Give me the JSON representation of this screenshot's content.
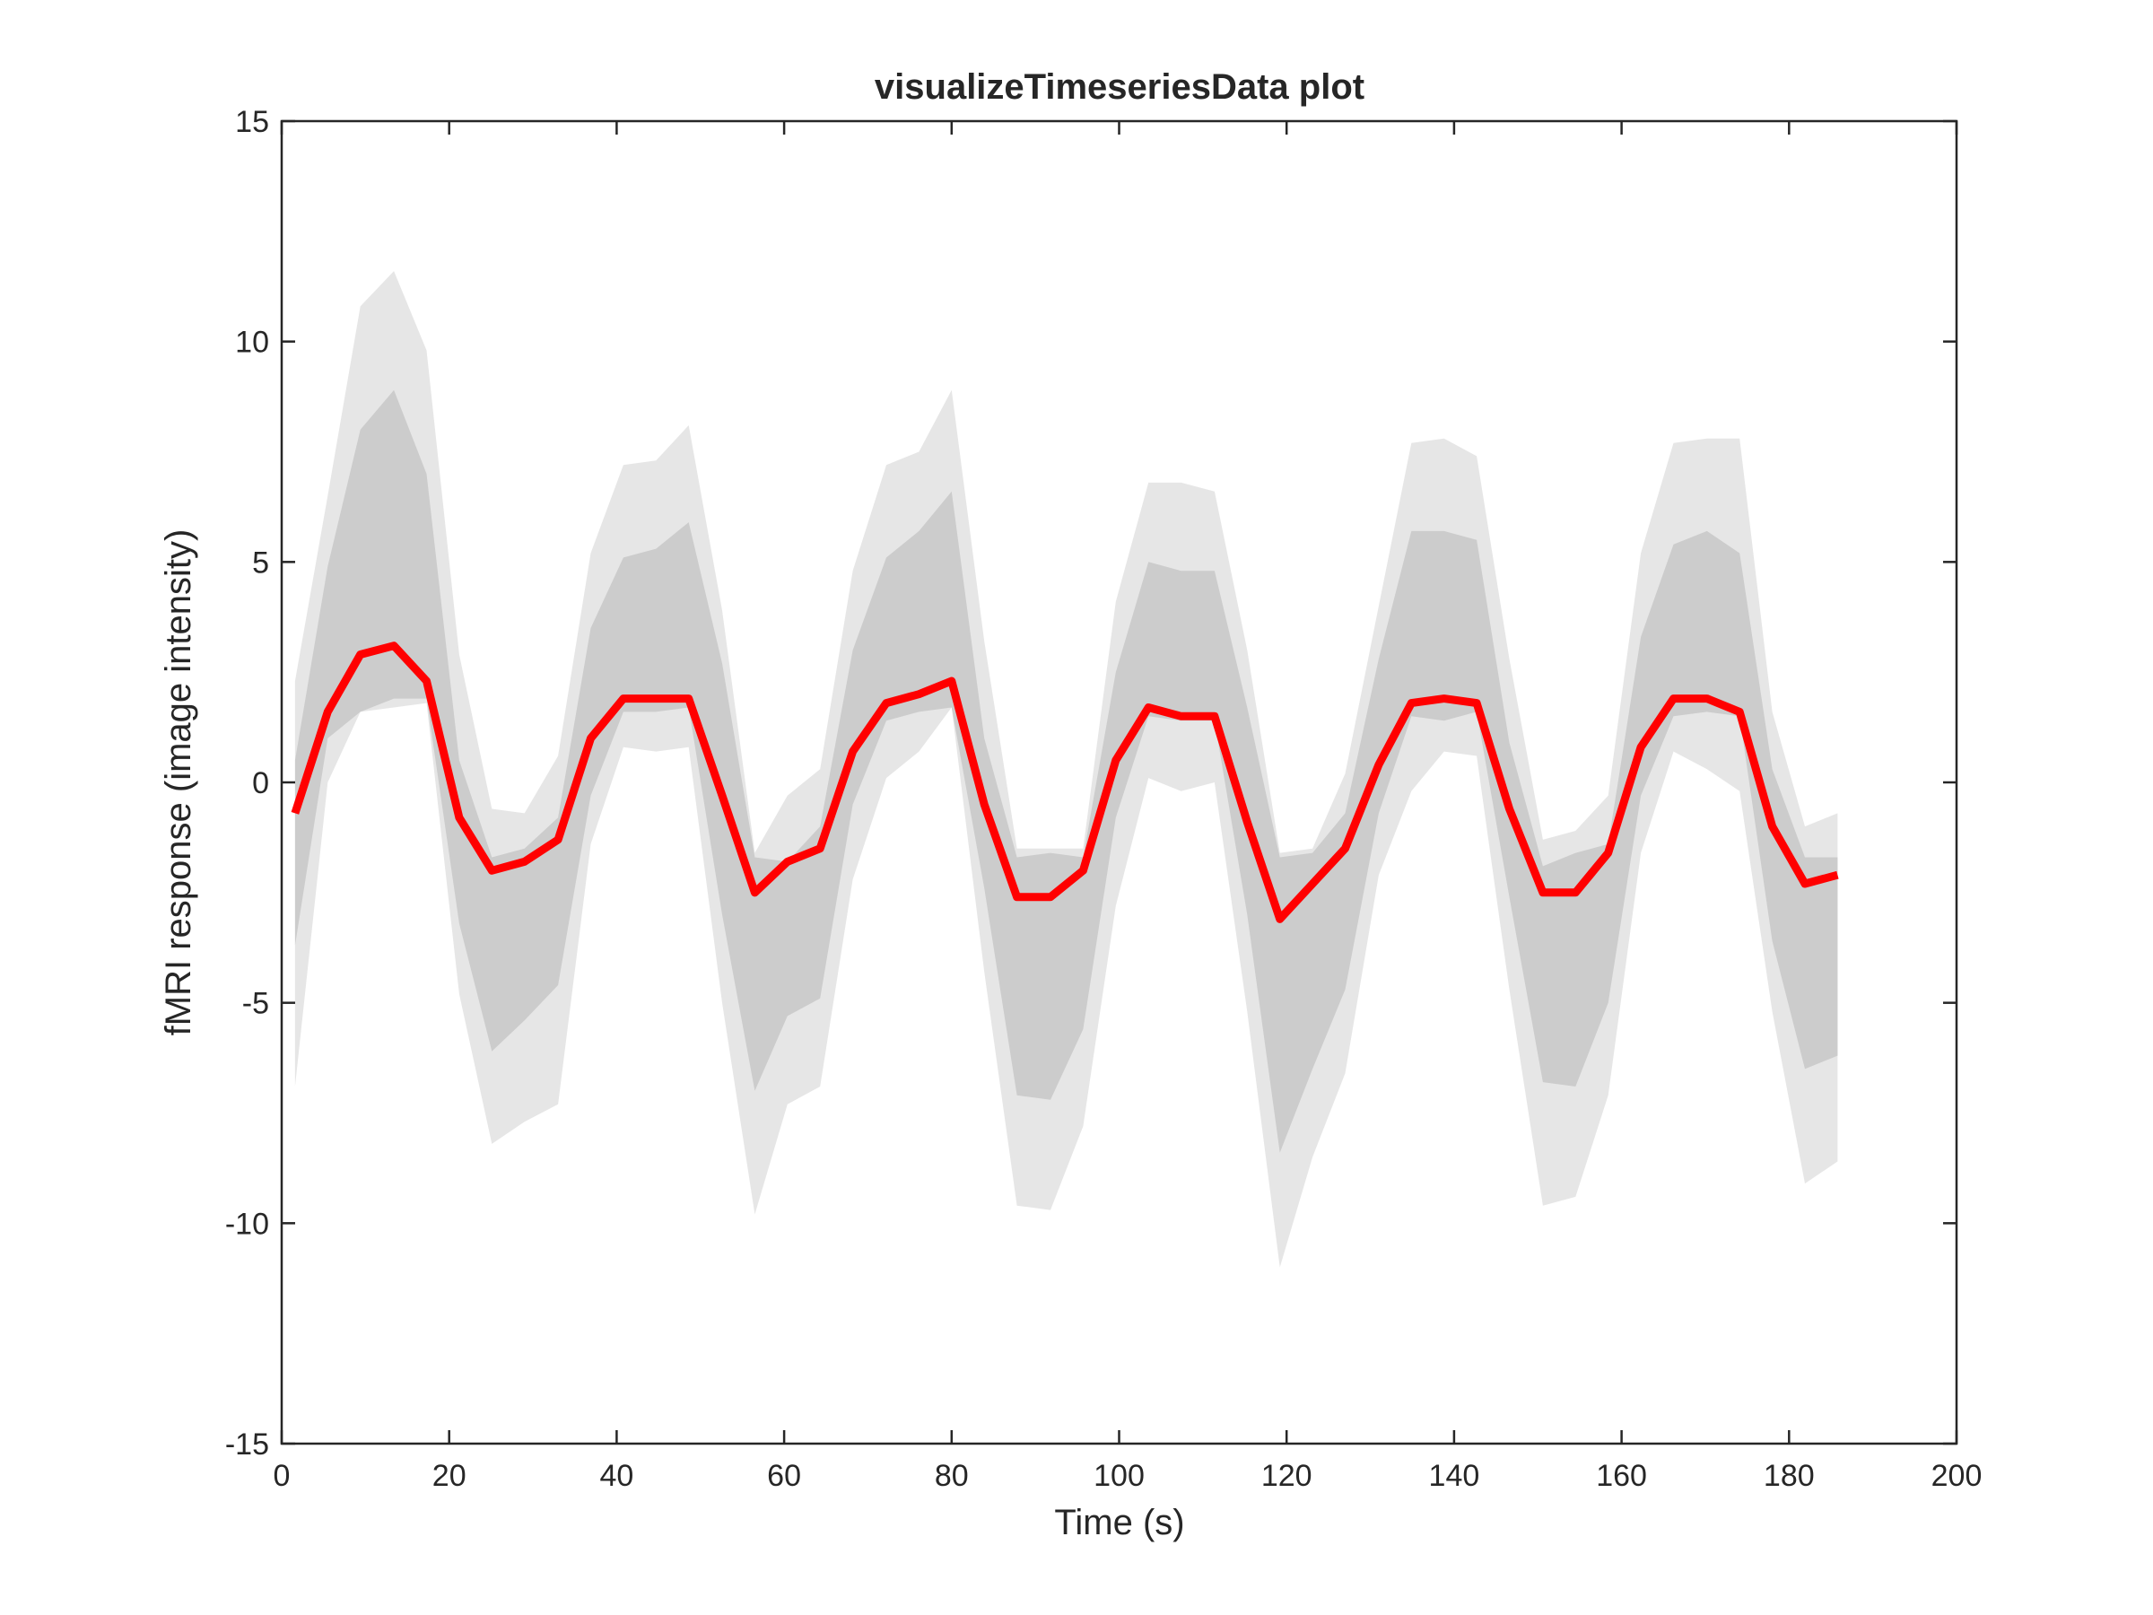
{
  "chart_data": {
    "type": "line",
    "title": "visualizeTimeseriesData plot",
    "x_label": "Time (s)",
    "y_label": "fMRI response (image intensity)",
    "x": [
      1.6,
      5.5,
      9.4,
      13.4,
      17.3,
      21.2,
      25.1,
      29.0,
      33.0,
      36.9,
      40.8,
      44.7,
      48.6,
      52.6,
      56.5,
      60.4,
      64.3,
      68.2,
      72.2,
      76.1,
      80.0,
      83.9,
      87.8,
      91.8,
      95.7,
      99.6,
      103.5,
      107.4,
      111.4,
      115.3,
      119.2,
      123.1,
      127.0,
      131.0,
      134.9,
      138.8,
      142.7,
      146.6,
      150.6,
      154.5,
      158.4,
      162.3,
      166.2,
      170.2,
      174.1,
      178.0,
      181.9,
      185.8
    ],
    "bands": [
      {
        "color": "#e6e6e6",
        "upper": [
          2.3,
          6.5,
          10.8,
          11.6,
          9.8,
          2.9,
          -0.6,
          -0.7,
          0.6,
          5.2,
          7.2,
          7.3,
          8.1,
          3.9,
          -1.6,
          -0.3,
          0.3,
          4.8,
          7.2,
          7.5,
          8.9,
          3.2,
          -1.5,
          -1.5,
          -1.5,
          4.1,
          6.8,
          6.8,
          6.6,
          3.0,
          -1.6,
          -1.5,
          0.2,
          4.0,
          7.7,
          7.8,
          7.4,
          2.8,
          -1.3,
          -1.1,
          -0.3,
          5.2,
          7.7,
          7.8,
          7.8,
          1.6,
          -1.0,
          -0.7
        ],
        "lower": [
          -6.9,
          0.0,
          1.6,
          1.7,
          1.8,
          -4.8,
          -8.2,
          -7.7,
          -7.3,
          -1.4,
          0.8,
          0.7,
          0.8,
          -5.0,
          -9.8,
          -7.3,
          -6.9,
          -2.2,
          0.1,
          0.7,
          1.7,
          -4.3,
          -9.6,
          -9.7,
          -7.8,
          -2.8,
          0.1,
          -0.2,
          0.0,
          -5.2,
          -11.0,
          -8.5,
          -6.6,
          -2.1,
          -0.2,
          0.7,
          0.6,
          -4.7,
          -9.6,
          -9.4,
          -7.1,
          -1.6,
          0.7,
          0.3,
          -0.2,
          -5.2,
          -9.1,
          -8.6
        ]
      },
      {
        "color": "#cccccc",
        "upper": [
          0.5,
          4.9,
          8.0,
          8.9,
          7.0,
          0.5,
          -1.7,
          -1.5,
          -0.8,
          3.5,
          5.1,
          5.3,
          5.9,
          2.7,
          -1.7,
          -1.8,
          -1.0,
          3.0,
          5.1,
          5.7,
          6.6,
          1.0,
          -1.7,
          -1.6,
          -1.7,
          2.5,
          5.0,
          4.8,
          4.8,
          1.7,
          -1.7,
          -1.6,
          -0.7,
          2.8,
          5.7,
          5.7,
          5.5,
          0.9,
          -1.9,
          -1.6,
          -1.4,
          3.3,
          5.4,
          5.7,
          5.2,
          0.3,
          -1.7,
          -1.7
        ],
        "lower": [
          -3.7,
          1.0,
          1.6,
          1.9,
          1.9,
          -3.2,
          -6.1,
          -5.4,
          -4.6,
          -0.3,
          1.6,
          1.6,
          1.7,
          -3.0,
          -7.0,
          -5.3,
          -4.9,
          -0.5,
          1.4,
          1.6,
          1.7,
          -2.4,
          -7.1,
          -7.2,
          -5.6,
          -0.8,
          1.5,
          1.4,
          1.4,
          -3.0,
          -8.4,
          -6.5,
          -4.7,
          -0.7,
          1.5,
          1.4,
          1.6,
          -2.6,
          -6.8,
          -6.9,
          -5.0,
          -0.3,
          1.5,
          1.6,
          1.5,
          -3.6,
          -6.5,
          -6.2
        ]
      }
    ],
    "series": [
      {
        "color": "#ff0000",
        "values": [
          -0.7,
          1.6,
          2.9,
          3.1,
          2.3,
          -0.8,
          -2.0,
          -1.8,
          -1.3,
          1.0,
          1.9,
          1.9,
          1.9,
          -0.3,
          -2.5,
          -1.8,
          -1.5,
          0.7,
          1.8,
          2.0,
          2.3,
          -0.5,
          -2.6,
          -2.6,
          -2.0,
          0.5,
          1.7,
          1.5,
          1.5,
          -0.9,
          -3.1,
          -2.3,
          -1.5,
          0.4,
          1.8,
          1.9,
          1.8,
          -0.6,
          -2.5,
          -2.5,
          -1.6,
          0.8,
          1.9,
          1.9,
          1.6,
          -1.0,
          -2.3,
          -2.1
        ]
      }
    ],
    "xlim": [
      0,
      200
    ],
    "xticks": [
      0,
      20,
      40,
      60,
      80,
      100,
      120,
      140,
      160,
      180,
      200
    ],
    "ylim": [
      -15,
      15
    ],
    "yticks": [
      -15,
      -10,
      -5,
      0,
      5,
      10,
      15
    ],
    "grid": false
  }
}
